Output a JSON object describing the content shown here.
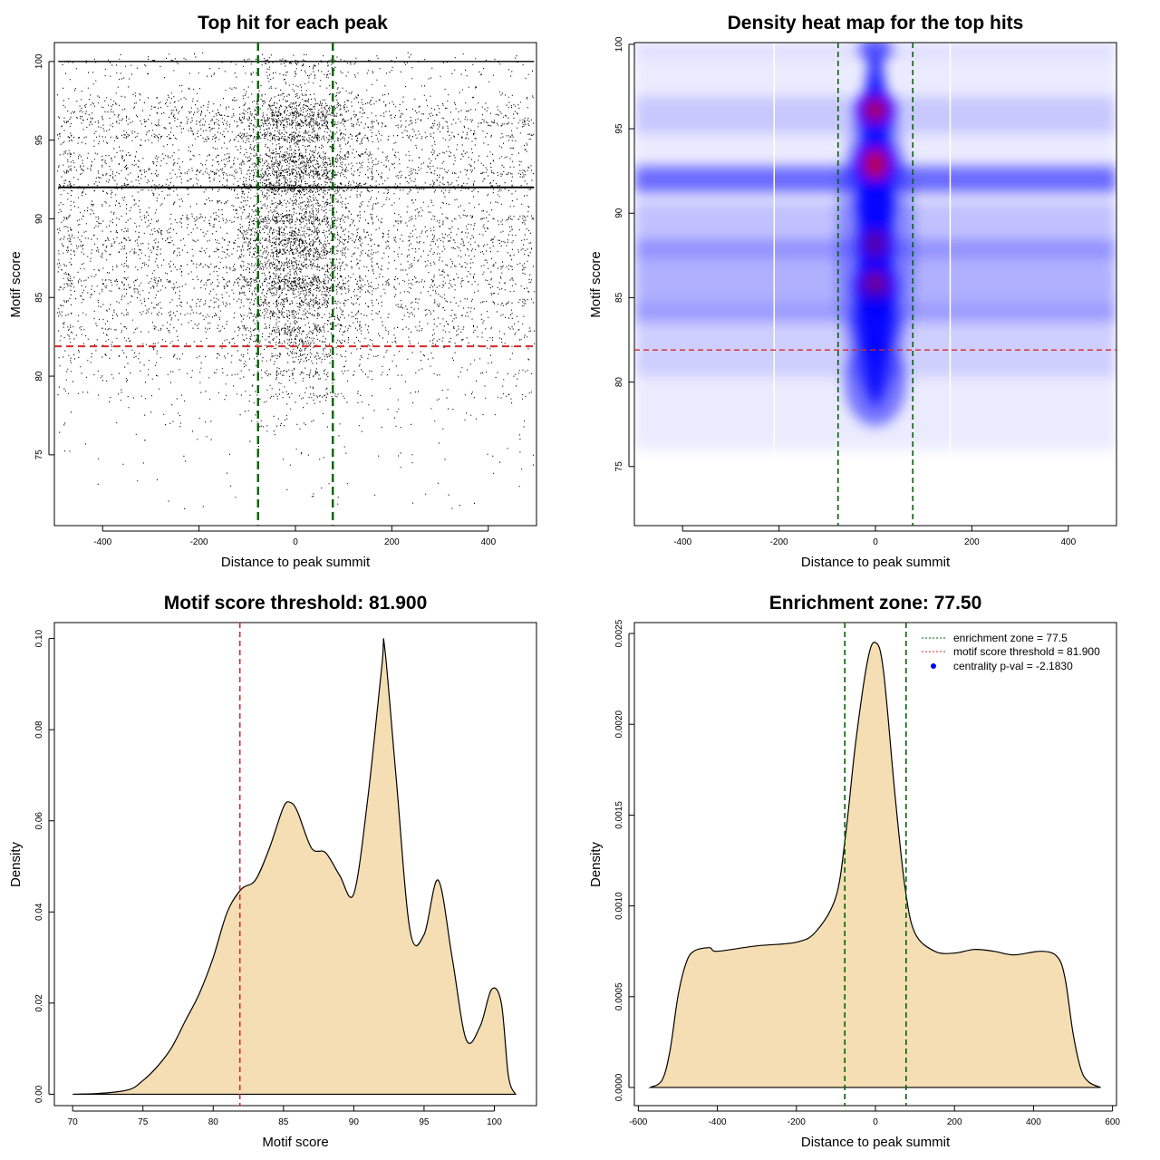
{
  "colors": {
    "threshold_line": "#d62728",
    "zone_line": "#006400",
    "density_fill": "#f5deb3",
    "heat_low": "#ffffff",
    "heat_mid": "#0000ff",
    "heat_high": "#ff0000"
  },
  "chart_data": [
    {
      "id": "scatter",
      "type": "scatter",
      "title": "Top hit for each peak",
      "xlabel": "Distance to peak summit",
      "ylabel": "Motif score",
      "xlim": [
        -500,
        500
      ],
      "ylim": [
        70.5,
        101.2
      ],
      "xticks": [
        -400,
        -200,
        0,
        200,
        400
      ],
      "yticks": [
        75,
        80,
        85,
        90,
        95,
        100
      ],
      "xtick_labels": [
        "-400",
        "-200",
        "0",
        "200",
        "400"
      ],
      "ytick_labels": [
        "75",
        "80",
        "85",
        "90",
        "95",
        "100"
      ],
      "threshold": 81.9,
      "zone": [
        -77.5,
        77.5
      ],
      "score_levels": [
        {
          "score": 100.0,
          "weight": 4
        },
        {
          "score": 99.2,
          "weight": 3
        },
        {
          "score": 98.3,
          "weight": 2
        },
        {
          "score": 97.2,
          "weight": 4
        },
        {
          "score": 96.6,
          "weight": 6
        },
        {
          "score": 96.1,
          "weight": 8
        },
        {
          "score": 95.2,
          "weight": 9
        },
        {
          "score": 94.0,
          "weight": 6
        },
        {
          "score": 93.5,
          "weight": 5
        },
        {
          "score": 92.9,
          "weight": 10
        },
        {
          "score": 92.0,
          "weight": 14
        },
        {
          "score": 91.0,
          "weight": 5
        },
        {
          "score": 90.0,
          "weight": 9
        },
        {
          "score": 89.2,
          "weight": 6
        },
        {
          "score": 88.6,
          "weight": 8
        },
        {
          "score": 87.9,
          "weight": 9
        },
        {
          "score": 87.0,
          "weight": 8
        },
        {
          "score": 86.1,
          "weight": 9
        },
        {
          "score": 85.6,
          "weight": 8
        },
        {
          "score": 84.7,
          "weight": 7
        },
        {
          "score": 83.9,
          "weight": 6
        },
        {
          "score": 83.0,
          "weight": 6
        },
        {
          "score": 82.2,
          "weight": 5
        },
        {
          "score": 81.3,
          "weight": 4
        },
        {
          "score": 80.2,
          "weight": 3
        },
        {
          "score": 78.8,
          "weight": 2
        },
        {
          "score": 77.0,
          "weight": 1
        },
        {
          "score": 75.0,
          "weight": 0.4
        }
      ]
    },
    {
      "id": "heatmap",
      "type": "heatmap",
      "title": "Density heat map for the top hits",
      "xlabel": "Distance to peak summit",
      "ylabel": "Motif score",
      "xlim": [
        -500,
        500
      ],
      "ylim": [
        71.5,
        100.1
      ],
      "xticks": [
        -400,
        -200,
        0,
        200,
        400
      ],
      "yticks": [
        75,
        80,
        85,
        90,
        95,
        100
      ],
      "xtick_labels": [
        "-400",
        "-200",
        "0",
        "200",
        "400"
      ],
      "ytick_labels": [
        "75",
        "80",
        "85",
        "90",
        "95",
        "100"
      ],
      "threshold": 81.9,
      "zone": [
        -77.5,
        77.5
      ],
      "white_bands": [
        -210,
        155
      ],
      "blobs": [
        {
          "x": 0,
          "y": 92.9,
          "sx": 28,
          "sy": 1.2,
          "w": 1.0
        },
        {
          "x": 0,
          "y": 96.1,
          "sx": 26,
          "sy": 0.9,
          "w": 0.95
        },
        {
          "x": 0,
          "y": 85.6,
          "sx": 28,
          "sy": 1.3,
          "w": 0.75
        },
        {
          "x": 0,
          "y": 88.2,
          "sx": 24,
          "sy": 1.1,
          "w": 0.65
        },
        {
          "x": 0,
          "y": 83.5,
          "sx": 30,
          "sy": 1.5,
          "w": 0.5
        },
        {
          "x": 0,
          "y": 90.5,
          "sx": 26,
          "sy": 1.0,
          "w": 0.55
        },
        {
          "x": 0,
          "y": 99.7,
          "sx": 22,
          "sy": 0.6,
          "w": 0.4
        },
        {
          "x": 0,
          "y": 80.0,
          "sx": 40,
          "sy": 2.0,
          "w": 0.3
        }
      ],
      "rows": [
        {
          "y": 92.0,
          "sy": 0.7,
          "w": 0.55
        },
        {
          "y": 86.0,
          "sy": 2.2,
          "w": 0.25
        },
        {
          "y": 89.0,
          "sy": 1.5,
          "w": 0.18
        },
        {
          "y": 95.8,
          "sy": 1.0,
          "w": 0.15
        },
        {
          "y": 82.5,
          "sy": 2.0,
          "w": 0.12
        },
        {
          "y": 99.8,
          "sy": 0.5,
          "w": 0.1
        }
      ]
    },
    {
      "id": "score-density",
      "type": "area",
      "title": "Motif score threshold: 81.900",
      "xlabel": "Motif score",
      "ylabel": "Density",
      "xlim": [
        68.7,
        103.0
      ],
      "ylim": [
        -0.0025,
        0.1035
      ],
      "xticks": [
        70,
        75,
        80,
        85,
        90,
        95,
        100
      ],
      "yticks": [
        0.0,
        0.02,
        0.04,
        0.06,
        0.08,
        0.1
      ],
      "xtick_labels": [
        "70",
        "75",
        "80",
        "85",
        "90",
        "95",
        "100"
      ],
      "ytick_labels": [
        "0.00",
        "0.02",
        "0.04",
        "0.06",
        "0.08",
        "0.10"
      ],
      "threshold": 81.9,
      "x": [
        70,
        72,
        74,
        75,
        76,
        77,
        78,
        79,
        80,
        81,
        82,
        83,
        84,
        85,
        85.5,
        86,
        87,
        88,
        89,
        90,
        91,
        92,
        92.2,
        93,
        94,
        95,
        96,
        97,
        98,
        99,
        99.8,
        100.5,
        101,
        101.5
      ],
      "y": [
        0.0,
        0.0002,
        0.001,
        0.003,
        0.006,
        0.01,
        0.016,
        0.022,
        0.03,
        0.04,
        0.045,
        0.047,
        0.054,
        0.063,
        0.064,
        0.062,
        0.054,
        0.053,
        0.048,
        0.044,
        0.065,
        0.094,
        0.098,
        0.07,
        0.036,
        0.035,
        0.047,
        0.03,
        0.012,
        0.015,
        0.023,
        0.02,
        0.004,
        0.0
      ]
    },
    {
      "id": "distance-density",
      "type": "area",
      "title": "Enrichment zone: 77.50",
      "xlabel": "Distance to peak summit",
      "ylabel": "Density",
      "xlim": [
        -610,
        610
      ],
      "ylim": [
        -0.0001,
        0.00256
      ],
      "xticks": [
        -600,
        -400,
        -200,
        0,
        200,
        400,
        600
      ],
      "yticks": [
        0.0,
        0.0005,
        0.001,
        0.0015,
        0.002,
        0.0025
      ],
      "xtick_labels": [
        "-600",
        "-400",
        "-200",
        "0",
        "200",
        "400",
        "600"
      ],
      "ytick_labels": [
        "0.0000",
        "0.0005",
        "0.0010",
        "0.0015",
        "0.0020",
        "0.0025"
      ],
      "zone": [
        -77.5,
        77.5
      ],
      "x": [
        -570,
        -540,
        -520,
        -500,
        -480,
        -460,
        -420,
        -400,
        -300,
        -200,
        -150,
        -100,
        -75,
        -50,
        -20,
        0,
        20,
        50,
        75,
        100,
        150,
        200,
        250,
        300,
        350,
        420,
        460,
        480,
        500,
        520,
        540,
        570
      ],
      "y": [
        0.0,
        4e-05,
        0.0002,
        0.0005,
        0.00068,
        0.00075,
        0.00077,
        0.00075,
        0.00078,
        0.0008,
        0.00086,
        0.00105,
        0.0014,
        0.0019,
        0.00235,
        0.00245,
        0.0023,
        0.0016,
        0.0011,
        0.00085,
        0.00075,
        0.00074,
        0.00076,
        0.00075,
        0.00073,
        0.00075,
        0.00072,
        0.0006,
        0.0003,
        0.0001,
        3e-05,
        0.0
      ],
      "legend": {
        "placement": "top-right",
        "items": [
          {
            "label": "enrichment zone = 77.5",
            "style": "dotted-line",
            "color": "#006400"
          },
          {
            "label": "motif score threshold = 81.900",
            "style": "dotted-line",
            "color": "#d62728"
          },
          {
            "label": "centrality p-val = -2.1830",
            "style": "point",
            "color": "#0000ff"
          }
        ]
      }
    }
  ]
}
